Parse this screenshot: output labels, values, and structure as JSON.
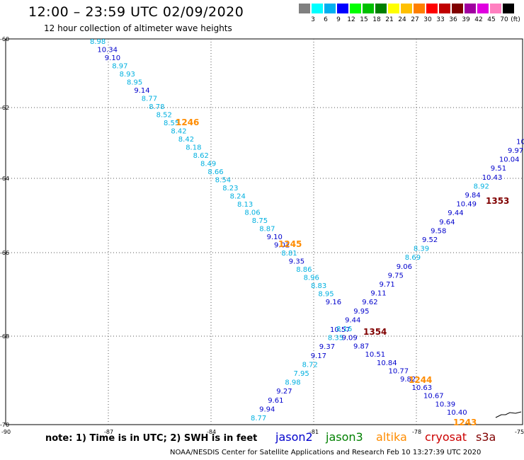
{
  "title": "12:00 – 23:59 UTC 02/09/2020",
  "subtitle": "12 hour collection of altimeter wave heights",
  "colorbar": {
    "labels": [
      "3",
      "6",
      "9",
      "12",
      "15",
      "18",
      "21",
      "24",
      "27",
      "30",
      "33",
      "36",
      "39",
      "42",
      "45",
      "70"
    ],
    "unit": "(ft)",
    "colors": [
      "#808080",
      "#00ffff",
      "#00b0f0",
      "#0000ff",
      "#00ff00",
      "#00c000",
      "#008000",
      "#ffff00",
      "#ffc000",
      "#ff8000",
      "#ff0000",
      "#c00000",
      "#800000",
      "#a000a0",
      "#e000e0",
      "#ff80c0",
      "#000000"
    ]
  },
  "axis": {
    "lon_ticks": [
      "-90",
      "-87",
      "-84",
      "-81",
      "-78",
      "-75"
    ],
    "lat_ticks": [
      "-60",
      "-62",
      "-64",
      "-66",
      "-68",
      "-70"
    ]
  },
  "passes": [
    {
      "label": "1246",
      "color": "#ff8c00"
    },
    {
      "label": "1245",
      "color": "#ff8c00"
    },
    {
      "label": "1244",
      "color": "#ff8c00"
    },
    {
      "label": "1243",
      "color": "#ff8c00"
    },
    {
      "label": "1353",
      "color": "#800000"
    },
    {
      "label": "1354",
      "color": "#800000"
    }
  ],
  "tracks": [
    {
      "name": "track-1",
      "values": [
        "8.98",
        "10.34",
        "9.10",
        "8.97",
        "8.93",
        "8.95",
        "9.14",
        "8.77",
        "8.78",
        "8.52",
        "8.55",
        "8.42",
        "8.42",
        "8.18",
        "8.62",
        "8.49",
        "8.66",
        "8.54",
        "8.23",
        "8.24",
        "8.13",
        "8.06",
        "8.75",
        "8.87",
        "9.10",
        "9.02",
        "8.81",
        "9.35",
        "8.86",
        "8.96",
        "8.83",
        "8.95",
        "9.16",
        "10.57",
        "9.09",
        "9.87",
        "10.51",
        "10.84",
        "10.77",
        "9.82",
        "10.63",
        "10.67",
        "10.39",
        "10.40"
      ]
    },
    {
      "name": "track-2",
      "values": [
        "8.77",
        "9.94",
        "9.61",
        "9.27",
        "8.98",
        "7.95",
        "8.72",
        "9.17",
        "9.37",
        "8.35",
        "8.16",
        "9.44",
        "9.95",
        "9.62",
        "9.11",
        "9.71",
        "9.75",
        "9.06",
        "8.69",
        "8.39",
        "9.52",
        "9.58",
        "9.64",
        "9.44",
        "10.49",
        "9.84",
        "8.92",
        "10.43",
        "9.51",
        "10.04",
        "9.97",
        "10"
      ]
    }
  ],
  "note": "note: 1) Time is in UTC; 2) SWH is in feet",
  "satellites": [
    {
      "name": "jason2",
      "color": "#0000cc"
    },
    {
      "name": "jason3",
      "color": "#008000"
    },
    {
      "name": "altika",
      "color": "#ff8c00"
    },
    {
      "name": "cryosat",
      "color": "#cc0000"
    },
    {
      "name": "s3a",
      "color": "#800000"
    }
  ],
  "credit": "NOAA/NESDIS Center for Satellite Applications and Research    Feb 10 13:27:39 UTC 2020"
}
